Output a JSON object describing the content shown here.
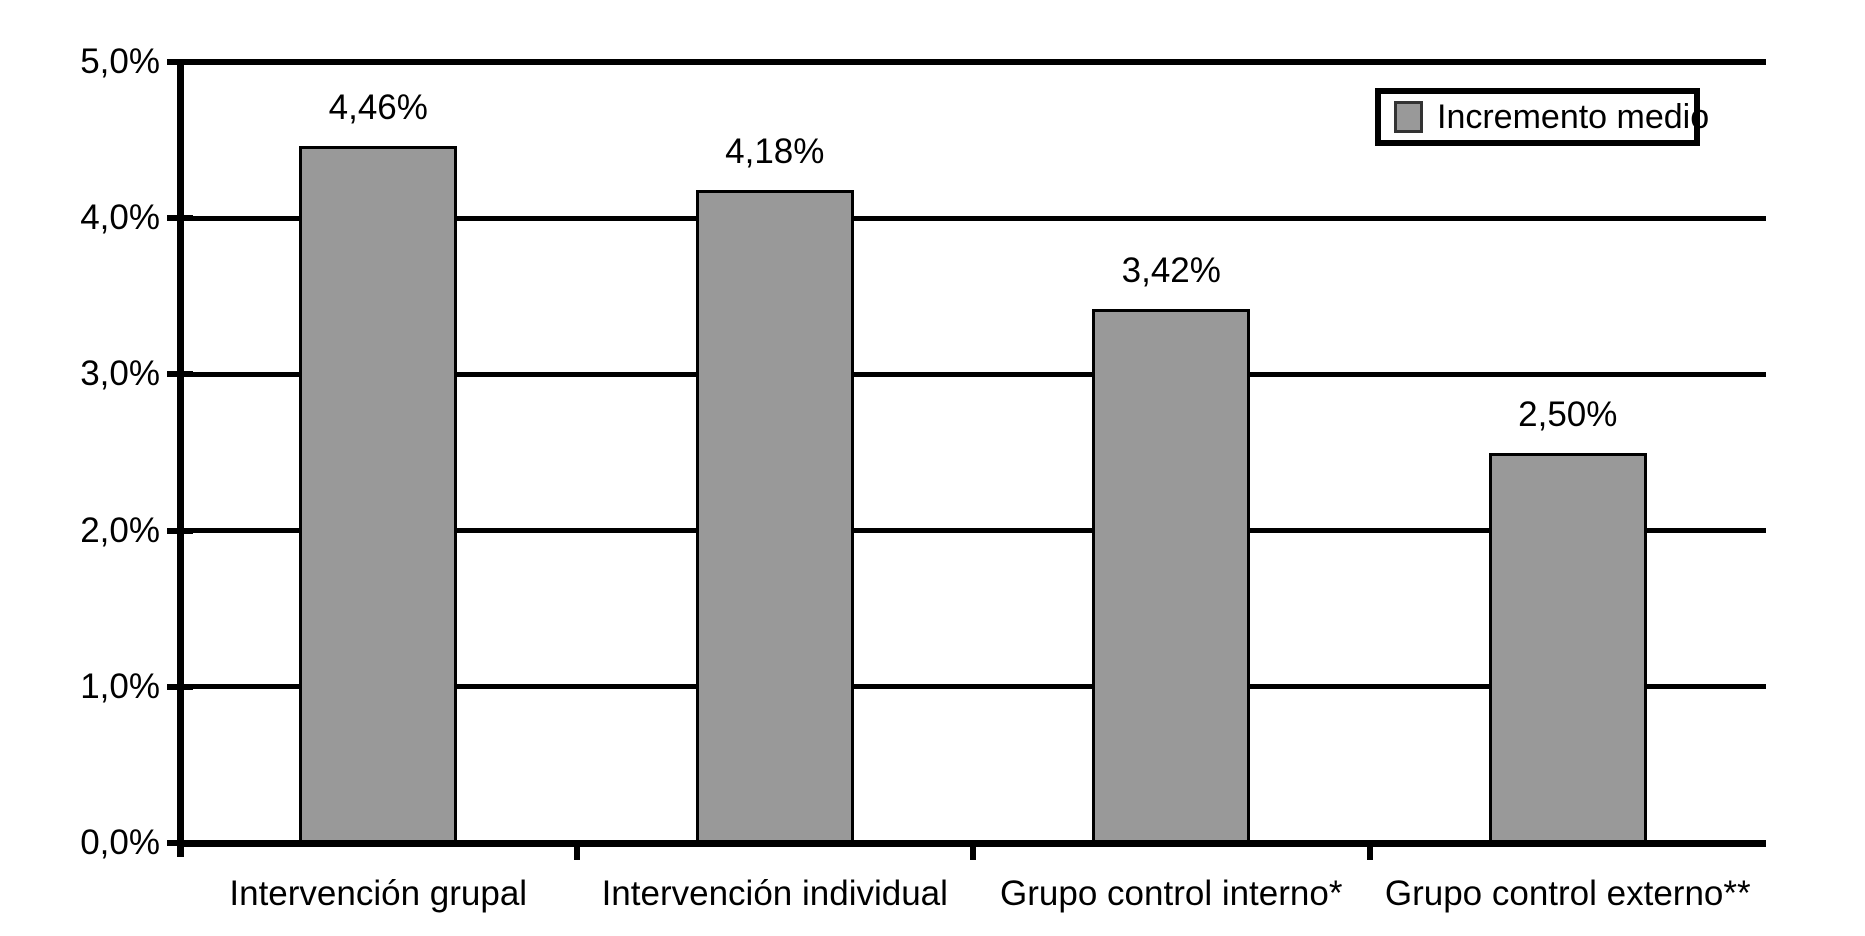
{
  "chart_data": {
    "type": "bar",
    "title": "",
    "categories": [
      "Intervención grupal",
      "Intervención individual",
      "Grupo control interno*",
      "Grupo control externo**"
    ],
    "series": [
      {
        "name": "Incremento medio",
        "values": [
          4.46,
          4.18,
          3.42,
          2.5
        ]
      }
    ],
    "value_labels": [
      "4,46%",
      "4,18%",
      "3,42%",
      "2,50%"
    ],
    "y_tick_labels": [
      "5,0%",
      "4,0%",
      "3,0%",
      "2,0%",
      "1,0%",
      "0,0%"
    ],
    "y_tick_values": [
      5,
      4,
      3,
      2,
      1,
      0
    ],
    "ylim": [
      0,
      5
    ],
    "xlabel": "",
    "ylabel": "",
    "grid": "horizontal",
    "decimal_separator": ",",
    "colors": {
      "bar_fill": "#999999",
      "bar_border": "#000000",
      "gridline": "#000000",
      "axis": "#000000",
      "text": "#000000",
      "background": "#ffffff"
    },
    "legend": {
      "label": "Incremento medio",
      "position": "top-right",
      "swatch_color": "#999999"
    }
  }
}
